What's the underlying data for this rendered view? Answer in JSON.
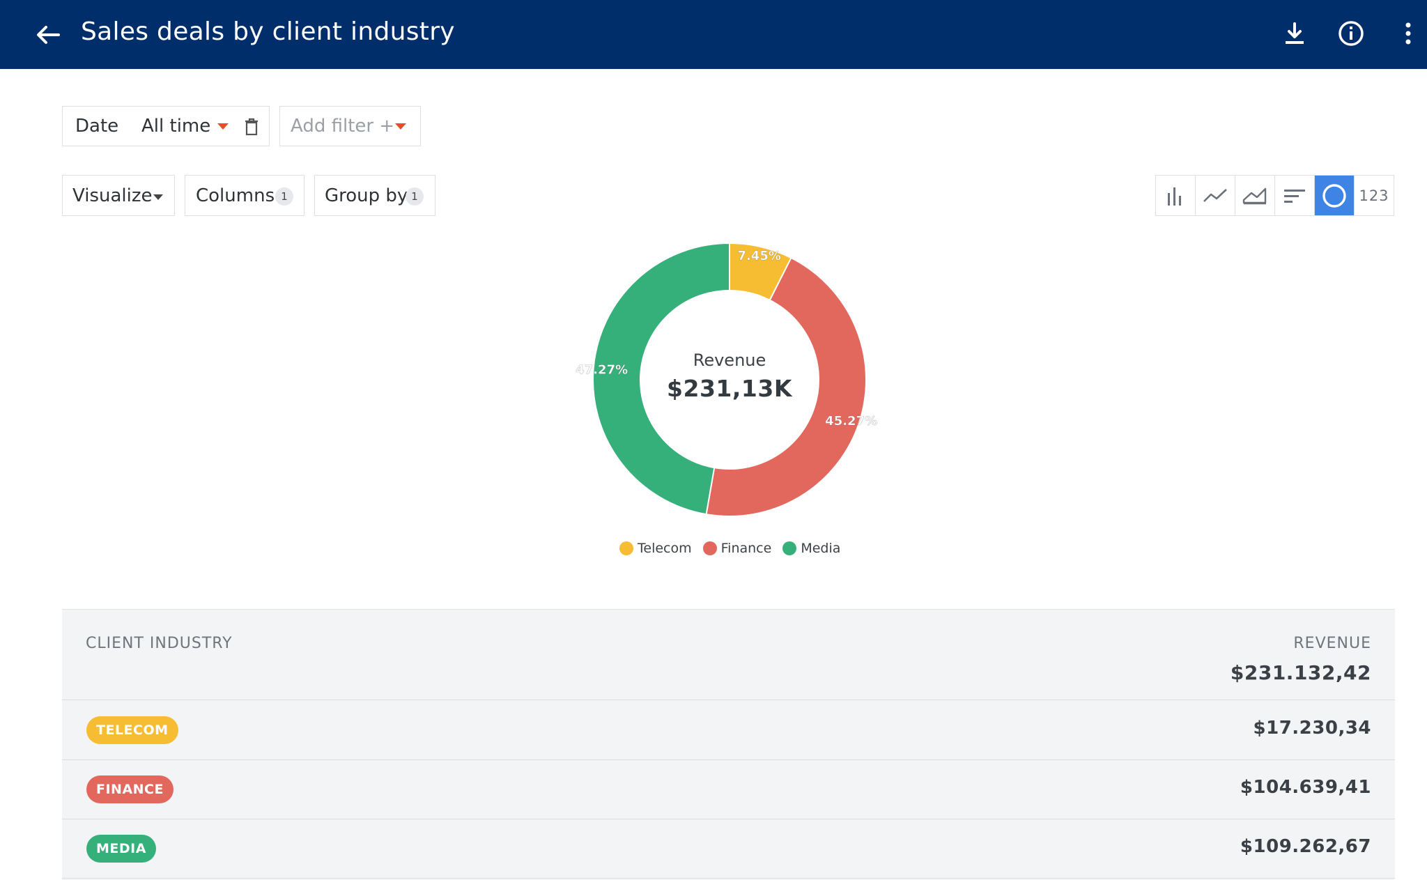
{
  "header": {
    "title": "Sales deals by client industry",
    "actions": [
      "download-icon",
      "info-icon",
      "more-vertical-icon"
    ]
  },
  "filters": {
    "date_label": "Date",
    "date_value": "All time",
    "add_filter": "Add filter +"
  },
  "toolbar": {
    "visualize": "Visualize",
    "columns": "Columns",
    "columns_count": "1",
    "group_by": "Group by",
    "group_by_count": "1",
    "viz_types": [
      "bar-chart-icon",
      "line-chart-icon",
      "area-chart-icon",
      "sorted-bars-icon",
      "donut-chart-icon",
      "number-icon"
    ],
    "number_label": "123",
    "active_viz": "donut-chart-icon"
  },
  "chart_data": {
    "type": "pie",
    "center_label": "Revenue",
    "center_value": "$231,13K",
    "slices": [
      {
        "name": "Telecom",
        "value": 7.45,
        "label": "7.45%",
        "color": "#f7bd32"
      },
      {
        "name": "Finance",
        "value": 45.27,
        "label": "45.27%",
        "color": "#e2685e"
      },
      {
        "name": "Media",
        "value": 47.27,
        "label": "47.27%",
        "color": "#36b07a"
      }
    ],
    "legend": [
      "Telecom",
      "Finance",
      "Media"
    ],
    "legend_position": "bottom"
  },
  "table": {
    "col_industry": "CLIENT INDUSTRY",
    "col_revenue": "REVENUE",
    "total": "$231.132,42",
    "rows": [
      {
        "industry": "TELECOM",
        "revenue": "$17.230,34",
        "color": "#f7bd32"
      },
      {
        "industry": "FINANCE",
        "revenue": "$104.639,41",
        "color": "#e2685e"
      },
      {
        "industry": "MEDIA",
        "revenue": "$109.262,67",
        "color": "#36b07a"
      }
    ]
  }
}
